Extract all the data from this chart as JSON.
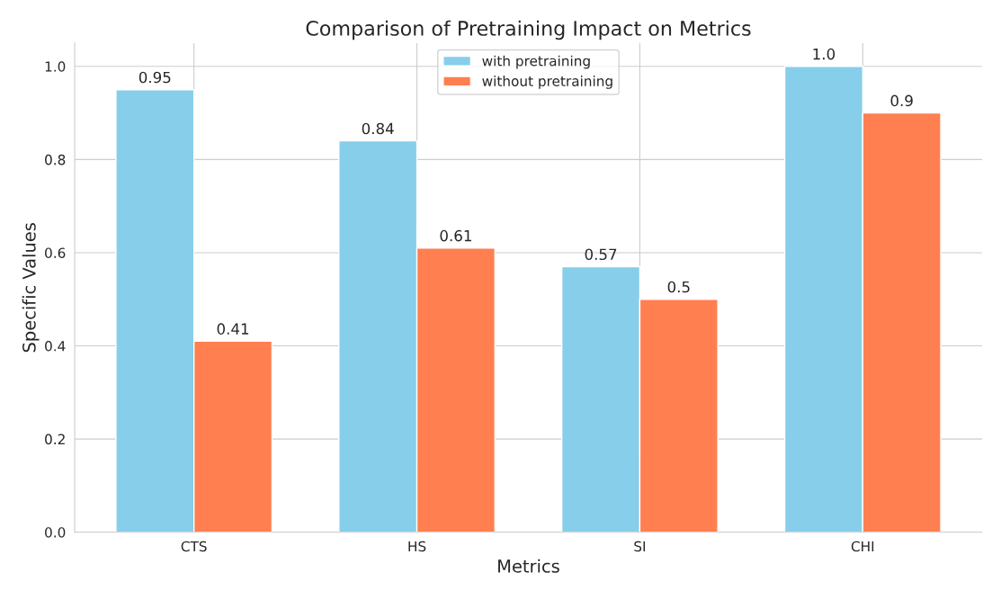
{
  "chart_data": {
    "type": "bar",
    "title": "Comparison of Pretraining Impact on Metrics",
    "xlabel": "Metrics",
    "ylabel": "Specific Values",
    "categories": [
      "CTS",
      "HS",
      "SI",
      "CHI"
    ],
    "series": [
      {
        "name": "with pretraining",
        "color": "#87ceeb",
        "values": [
          0.95,
          0.84,
          0.57,
          1.0
        ],
        "value_labels": [
          "0.95",
          "0.84",
          "0.57",
          "1.0"
        ]
      },
      {
        "name": "without pretraining",
        "color": "#ff7f50",
        "values": [
          0.41,
          0.61,
          0.5,
          0.9
        ],
        "value_labels": [
          "0.41",
          "0.61",
          "0.5",
          "0.9"
        ]
      }
    ],
    "ylim": [
      0,
      1.05
    ],
    "yticks": [
      {
        "value": 0,
        "label": "0.0"
      },
      0.2,
      0.4,
      0.6,
      0.8,
      {
        "value": 1,
        "label": "1.0"
      }
    ],
    "grid": true,
    "legend": "top"
  }
}
